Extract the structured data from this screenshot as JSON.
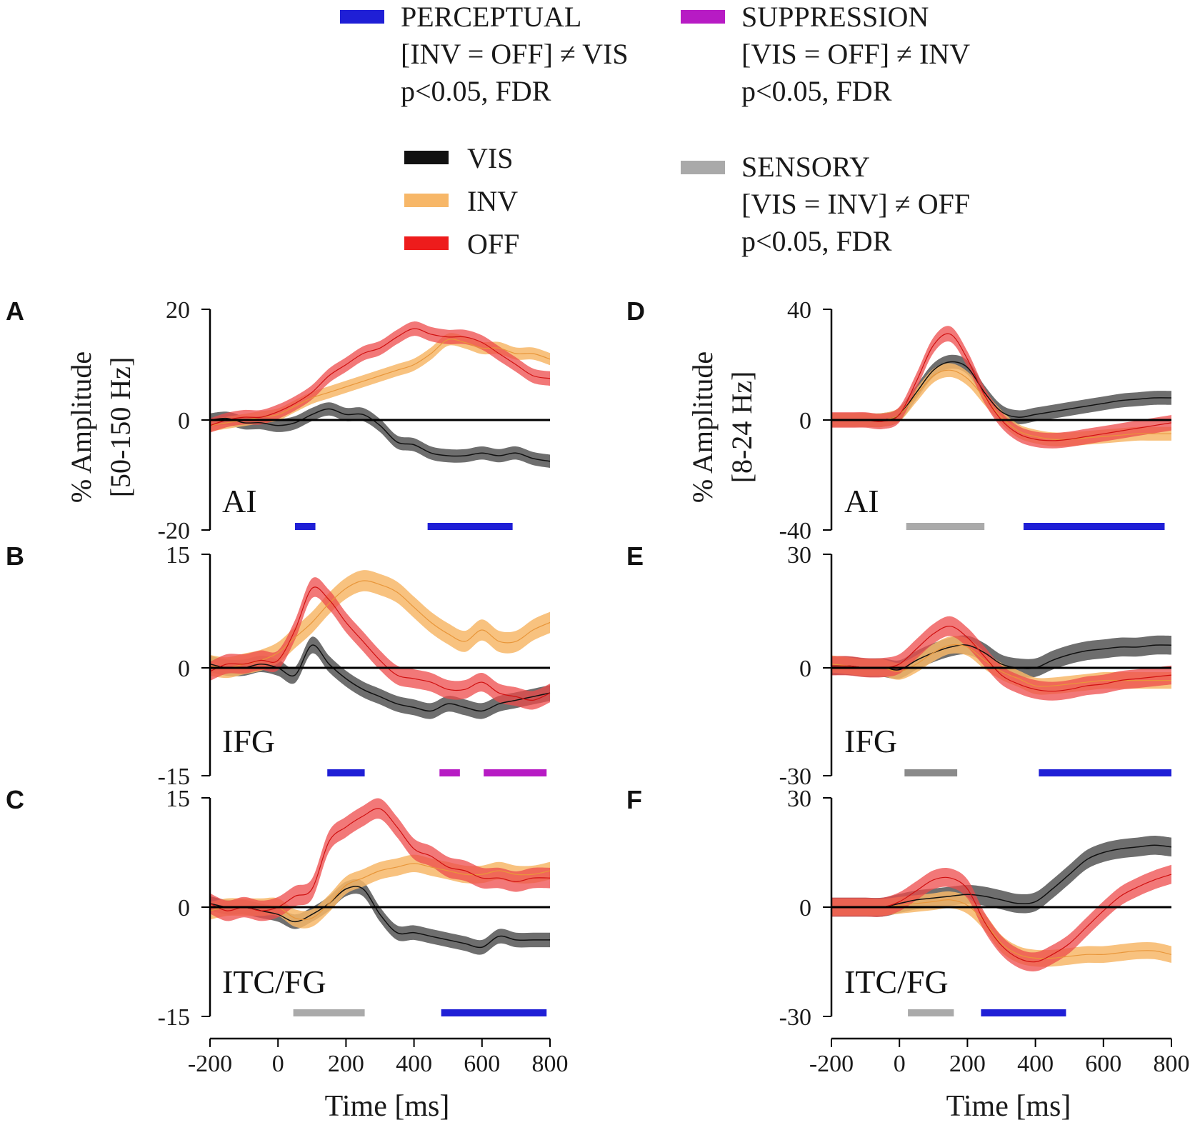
{
  "legend": {
    "perceptual": {
      "label": "PERCEPTUAL",
      "line2": "[INV = OFF] ≠ VIS",
      "line3": "p<0.05, FDR",
      "color": "#1f1fd6"
    },
    "suppression": {
      "label": "SUPPRESSION",
      "line2": "[VIS = OFF] ≠ INV",
      "line3": "p<0.05, FDR",
      "color": "#b71bc4"
    },
    "sensory": {
      "label": "SENSORY",
      "line2": "[VIS = INV] ≠ OFF",
      "line3": "p<0.05, FDR",
      "color": "#a9a9a9"
    },
    "conditions": [
      {
        "label": "VIS",
        "color": "#111111"
      },
      {
        "label": "INV",
        "color": "#f7b768"
      },
      {
        "label": "OFF",
        "color": "#ee1c1c"
      }
    ]
  },
  "colors": {
    "vis_band": "#555555",
    "vis_line": "#111111",
    "inv_band": "#f7b768",
    "inv_line": "#e8963a",
    "off_band": "#ee4b4b",
    "off_line": "#d01010",
    "perceptual": "#1f1fd6",
    "suppression": "#b71bc4",
    "sensory_light": "#aaaaaa",
    "sensory_dark": "#8a8a8a"
  },
  "chart_data": [
    {
      "panel": "A",
      "region": "AI",
      "type": "line",
      "ylabel_line1": "% Amplitude",
      "ylabel_line2": "[50-150 Hz]",
      "ylim": [
        -20,
        20
      ],
      "ytick_labels": [
        "20",
        "0",
        "-20"
      ],
      "x": [
        -200,
        -150,
        -100,
        -50,
        0,
        50,
        100,
        150,
        200,
        250,
        300,
        350,
        400,
        450,
        500,
        550,
        600,
        650,
        700,
        750,
        800
      ],
      "series": [
        {
          "name": "VIS",
          "values": [
            0,
            0.3,
            -0.5,
            -0.5,
            -1,
            -0.5,
            1,
            2,
            1,
            1,
            -1,
            -4,
            -4.5,
            -6,
            -6.5,
            -6.5,
            -6,
            -6.5,
            -6,
            -7,
            -7.5
          ],
          "halfwidth": 1.2
        },
        {
          "name": "INV",
          "values": [
            -1,
            -0.5,
            0,
            0.5,
            1,
            2.5,
            4,
            5,
            6,
            7,
            8,
            9,
            10,
            12,
            14.5,
            14,
            13,
            13,
            12,
            12,
            11
          ],
          "halfwidth": 1.1
        },
        {
          "name": "OFF",
          "values": [
            -1,
            0,
            0.5,
            0.5,
            1.5,
            3,
            5,
            8,
            10,
            12,
            13,
            15,
            16.5,
            15.5,
            15,
            15,
            14,
            12,
            10,
            8,
            7.5
          ],
          "halfwidth": 1.3
        }
      ],
      "bars": [
        {
          "type": "PERCEPTUAL",
          "x0": 50,
          "x1": 110
        },
        {
          "type": "PERCEPTUAL",
          "x0": 440,
          "x1": 690
        }
      ]
    },
    {
      "panel": "B",
      "region": "IFG",
      "type": "line",
      "ylim": [
        -15,
        15
      ],
      "ytick_labels": [
        "15",
        "0",
        "-15"
      ],
      "x": [
        -200,
        -150,
        -100,
        -50,
        0,
        50,
        100,
        150,
        200,
        250,
        300,
        350,
        400,
        450,
        500,
        550,
        600,
        650,
        700,
        750,
        800
      ],
      "series": [
        {
          "name": "VIS",
          "values": [
            0.5,
            0,
            0,
            0.5,
            0,
            -1,
            3,
            0.5,
            -1.5,
            -3,
            -4,
            -5,
            -5.5,
            -6,
            -5,
            -5.5,
            -6,
            -5,
            -4.5,
            -4,
            -3.5
          ],
          "halfwidth": 1.1
        },
        {
          "name": "INV",
          "values": [
            0.3,
            0,
            0.5,
            1,
            2,
            4,
            6,
            8.5,
            10.5,
            11.5,
            11,
            10,
            8,
            6,
            4.5,
            3.5,
            5,
            3.5,
            3.5,
            5,
            6
          ],
          "halfwidth": 1.4
        },
        {
          "name": "OFF",
          "values": [
            -0.5,
            0.5,
            0.5,
            1,
            1,
            5,
            10.5,
            9,
            6,
            3.5,
            1,
            -1,
            -1.5,
            -2,
            -3,
            -3,
            -2,
            -3.5,
            -4,
            -4.5,
            -3.5
          ],
          "halfwidth": 1.3
        }
      ],
      "bars": [
        {
          "type": "PERCEPTUAL",
          "x0": 145,
          "x1": 255
        },
        {
          "type": "SUPPRESSION",
          "x0": 475,
          "x1": 535
        },
        {
          "type": "SUPPRESSION",
          "x0": 605,
          "x1": 790
        }
      ]
    },
    {
      "panel": "C",
      "region": "ITC/FG",
      "type": "line",
      "ylim": [
        -15,
        15
      ],
      "ytick_labels": [
        "15",
        "0",
        "-15"
      ],
      "x": [
        -200,
        -150,
        -100,
        -50,
        0,
        50,
        100,
        150,
        200,
        250,
        300,
        350,
        400,
        450,
        500,
        550,
        600,
        650,
        700,
        750,
        800
      ],
      "series": [
        {
          "name": "VIS",
          "values": [
            0.5,
            0,
            0,
            -0.5,
            -1,
            -2,
            -1,
            0.5,
            2.5,
            2.5,
            -1,
            -3.5,
            -3.5,
            -4,
            -4.5,
            -5,
            -5.5,
            -4,
            -4.5,
            -4.5,
            -4.5
          ],
          "halfwidth": 1.0
        },
        {
          "name": "INV",
          "values": [
            -0.5,
            0,
            0,
            0,
            0,
            -1.5,
            -1.5,
            0.5,
            3,
            4,
            5,
            5.5,
            6,
            5.5,
            5,
            4.5,
            4.5,
            5,
            4.5,
            4.5,
            5
          ],
          "halfwidth": 1.2
        },
        {
          "name": "OFF",
          "values": [
            0.5,
            -0.5,
            0,
            -0.5,
            0,
            1.5,
            2.5,
            9,
            11,
            12.5,
            13.5,
            11,
            8,
            7,
            5.5,
            5,
            4,
            4,
            3.5,
            4,
            4
          ],
          "halfwidth": 1.4
        }
      ],
      "bars": [
        {
          "type": "SENSORY",
          "x0": 45,
          "x1": 255
        },
        {
          "type": "PERCEPTUAL",
          "x0": 480,
          "x1": 790
        }
      ],
      "xticks": [
        "-200",
        "0",
        "200",
        "400",
        "600",
        "800"
      ],
      "xlabel": "Time [ms]"
    },
    {
      "panel": "D",
      "region": "AI",
      "type": "line",
      "ylabel_line1": "% Amplitude",
      "ylabel_line2": "[8-24 Hz]",
      "ylim": [
        -40,
        40
      ],
      "ytick_labels": [
        "40",
        "0",
        "-40"
      ],
      "x": [
        -200,
        -150,
        -100,
        -50,
        0,
        50,
        100,
        150,
        200,
        250,
        300,
        350,
        400,
        450,
        500,
        550,
        600,
        650,
        700,
        750,
        800
      ],
      "series": [
        {
          "name": "VIS",
          "values": [
            0,
            0,
            0,
            0,
            2,
            10,
            18,
            21,
            19,
            10,
            3,
            1,
            2,
            3,
            4,
            5,
            6,
            7,
            7.5,
            8,
            8
          ],
          "halfwidth": 2.5
        },
        {
          "name": "INV",
          "values": [
            0,
            0,
            0,
            0,
            2,
            9,
            16,
            18,
            15,
            8,
            1,
            -4,
            -6,
            -7,
            -7,
            -6.5,
            -6,
            -5.5,
            -5,
            -5,
            -5
          ],
          "halfwidth": 2.5
        },
        {
          "name": "OFF",
          "values": [
            0,
            0,
            0,
            -0.5,
            2,
            14,
            27,
            31,
            22,
            9,
            0,
            -5,
            -7,
            -7.5,
            -7,
            -6,
            -5,
            -4,
            -3,
            -2,
            -1
          ],
          "halfwidth": 2.8
        }
      ],
      "bars": [
        {
          "type": "SENSORY",
          "x0": 20,
          "x1": 250
        },
        {
          "type": "PERCEPTUAL",
          "x0": 365,
          "x1": 780
        }
      ]
    },
    {
      "panel": "E",
      "region": "IFG",
      "type": "line",
      "ylim": [
        -30,
        30
      ],
      "ytick_labels": [
        "30",
        "0",
        "-30"
      ],
      "x": [
        -200,
        -150,
        -100,
        -50,
        0,
        50,
        100,
        150,
        200,
        250,
        300,
        350,
        400,
        450,
        500,
        550,
        600,
        650,
        700,
        750,
        800
      ],
      "series": [
        {
          "name": "VIS",
          "values": [
            0.5,
            0.5,
            0,
            0,
            -0.5,
            2,
            4,
            5.5,
            6,
            4,
            1,
            0,
            0,
            2,
            3.5,
            4.5,
            5,
            5.5,
            5.5,
            6,
            6
          ],
          "halfwidth": 2.5
        },
        {
          "name": "INV",
          "values": [
            1,
            0.5,
            0,
            0,
            -1,
            1,
            4,
            6,
            5.5,
            2,
            -1,
            -3,
            -5,
            -5,
            -4.5,
            -4,
            -3.5,
            -3.5,
            -3.5,
            -3.5,
            -3.5
          ],
          "halfwidth": 2.3
        },
        {
          "name": "OFF",
          "values": [
            0.5,
            0.5,
            0,
            0,
            1,
            5,
            9,
            11,
            8,
            3,
            -2,
            -4.5,
            -6,
            -6.5,
            -6,
            -5,
            -4.5,
            -3.5,
            -3,
            -2.5,
            -2
          ],
          "halfwidth": 2.6
        }
      ],
      "bars": [
        {
          "type": "SENSORY_DARK",
          "x0": 15,
          "x1": 170
        },
        {
          "type": "PERCEPTUAL",
          "x0": 410,
          "x1": 800
        }
      ]
    },
    {
      "panel": "F",
      "region": "ITC/FG",
      "type": "line",
      "ylim": [
        -30,
        30
      ],
      "ytick_labels": [
        "30",
        "0",
        "-30"
      ],
      "x": [
        -200,
        -150,
        -100,
        -50,
        0,
        50,
        100,
        150,
        200,
        250,
        300,
        350,
        400,
        450,
        500,
        550,
        600,
        650,
        700,
        750,
        800
      ],
      "series": [
        {
          "name": "VIS",
          "values": [
            0,
            0,
            0,
            0,
            1,
            2,
            2.5,
            3,
            3.5,
            3,
            2,
            1,
            1.5,
            5,
            9,
            13,
            15,
            16,
            16.5,
            17,
            16.5
          ],
          "halfwidth": 2.6
        },
        {
          "name": "INV",
          "values": [
            0,
            0,
            0,
            0,
            0.5,
            1,
            1.5,
            2,
            0.5,
            -4,
            -10,
            -13,
            -14,
            -14,
            -13.5,
            -13,
            -13,
            -12.5,
            -12,
            -12,
            -13
          ],
          "halfwidth": 2.3
        },
        {
          "name": "OFF",
          "values": [
            0,
            0,
            0,
            0,
            1.5,
            4.5,
            7.5,
            8,
            5,
            -4,
            -10.5,
            -14,
            -15,
            -13,
            -10,
            -5.5,
            -1,
            3,
            5.5,
            7.5,
            9
          ],
          "halfwidth": 2.6
        }
      ],
      "bars": [
        {
          "type": "SENSORY",
          "x0": 25,
          "x1": 160
        },
        {
          "type": "PERCEPTUAL",
          "x0": 240,
          "x1": 490
        }
      ],
      "xticks": [
        "-200",
        "0",
        "200",
        "400",
        "600",
        "800"
      ],
      "xlabel": "Time [ms]"
    }
  ]
}
